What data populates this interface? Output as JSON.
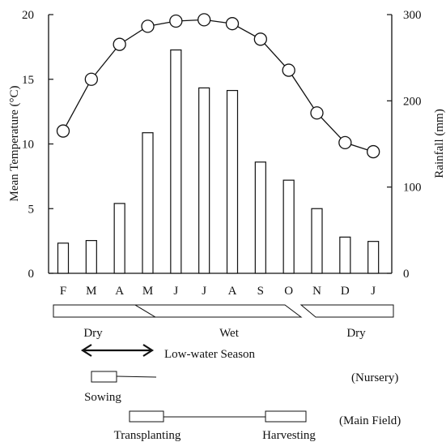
{
  "chart_data": {
    "type": "bar+line",
    "categories": [
      "F",
      "M",
      "A",
      "M",
      "J",
      "J",
      "A",
      "S",
      "O",
      "N",
      "D",
      "J"
    ],
    "series": [
      {
        "name": "Rainfall",
        "kind": "bar",
        "axis": "right",
        "values": [
          35,
          38,
          81,
          163,
          259,
          215,
          212,
          129,
          108,
          75,
          42,
          37
        ]
      },
      {
        "name": "Mean Temperature",
        "kind": "line-marker",
        "axis": "left",
        "values": [
          11.0,
          15.0,
          17.7,
          19.1,
          19.5,
          19.6,
          19.3,
          18.1,
          15.7,
          12.4,
          10.1,
          9.4
        ]
      }
    ],
    "ylabel_left": "Mean Temperature (°C)",
    "ylabel_right": "Rainfall (mm)",
    "ylim_left": [
      0,
      20
    ],
    "ylim_right": [
      0,
      300
    ],
    "yticks_left": [
      "0",
      "5",
      "10",
      "15",
      "20"
    ],
    "yticks_right": [
      "0",
      "100",
      "200",
      "300"
    ],
    "grid": false
  },
  "seasons": [
    {
      "label": "Dry",
      "from": 0,
      "to": 3
    },
    {
      "label": "Wet",
      "from": 3,
      "to": 9
    },
    {
      "label": "Dry",
      "from": 9,
      "to": 12
    }
  ],
  "low_water": {
    "label": "Low-water Season",
    "from": 1,
    "to": 3
  },
  "nursery": {
    "row_label": "(Nursery)",
    "sowing_label": "Sowing"
  },
  "main_field": {
    "row_label": "(Main Field)",
    "transplanting_label": "Transplanting",
    "harvesting_label": "Harvesting"
  }
}
